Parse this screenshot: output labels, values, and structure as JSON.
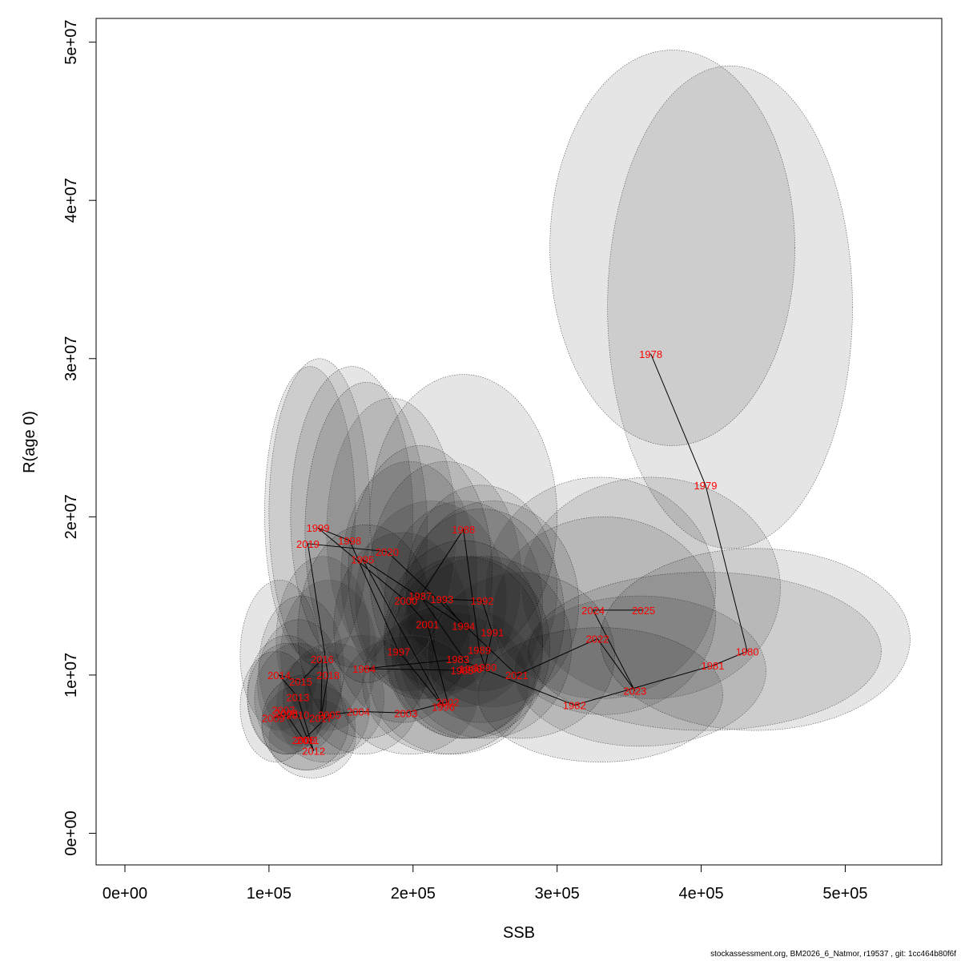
{
  "chart_data": {
    "type": "scatter",
    "title": "",
    "xlabel": "SSB",
    "ylabel": "R(age 0)",
    "xlim": [
      -20000,
      567000
    ],
    "ylim": [
      -2000000,
      51500000
    ],
    "x_ticks": [
      {
        "value": 0,
        "label": "0e+00"
      },
      {
        "value": 100000,
        "label": "1e+05"
      },
      {
        "value": 200000,
        "label": "2e+05"
      },
      {
        "value": 300000,
        "label": "3e+05"
      },
      {
        "value": 400000,
        "label": "4e+05"
      },
      {
        "value": 500000,
        "label": "5e+05"
      }
    ],
    "y_ticks": [
      {
        "value": 0,
        "label": "0e+00"
      },
      {
        "value": 10000000,
        "label": "1e+07"
      },
      {
        "value": 20000000,
        "label": "2e+07"
      },
      {
        "value": 30000000,
        "label": "3e+07"
      },
      {
        "value": 40000000,
        "label": "4e+07"
      },
      {
        "value": 50000000,
        "label": "5e+07"
      }
    ],
    "connect_points": true,
    "label_color": "#ff0000",
    "ellipse_fill": "#000000",
    "ellipse_opacity": 0.1,
    "points": [
      {
        "year": "1978",
        "ssb": 365000,
        "rec": 30300000,
        "ell_x": [
          295000,
          465000
        ],
        "ell_y": [
          24500000,
          49500000
        ]
      },
      {
        "year": "1979",
        "ssb": 403000,
        "rec": 22000000,
        "ell_x": [
          335000,
          505000
        ],
        "ell_y": [
          18000000,
          48500000
        ]
      },
      {
        "year": "1980",
        "ssb": 432000,
        "rec": 11500000,
        "ell_x": [
          330000,
          545000
        ],
        "ell_y": [
          6500000,
          18000000
        ]
      },
      {
        "year": "1981",
        "ssb": 408000,
        "rec": 10600000,
        "ell_x": [
          280000,
          525000
        ],
        "ell_y": [
          6500000,
          16500000
        ]
      },
      {
        "year": "1982",
        "ssb": 312000,
        "rec": 8100000,
        "ell_x": [
          245000,
          415000
        ],
        "ell_y": [
          4500000,
          13000000
        ]
      },
      {
        "year": "1983",
        "ssb": 231000,
        "rec": 11000000,
        "ell_x": [
          180000,
          290000
        ],
        "ell_y": [
          6000000,
          18500000
        ]
      },
      {
        "year": "1984",
        "ssb": 166000,
        "rec": 10400000,
        "ell_x": [
          120000,
          215000
        ],
        "ell_y": [
          6000000,
          19500000
        ]
      },
      {
        "year": "1985",
        "ssb": 234000,
        "rec": 10300000,
        "ell_x": [
          180000,
          290000
        ],
        "ell_y": [
          6000000,
          17500000
        ]
      },
      {
        "year": "1986",
        "ssb": 240000,
        "rec": 10400000,
        "ell_x": [
          185000,
          295000
        ],
        "ell_y": [
          6000000,
          17500000
        ]
      },
      {
        "year": "1987",
        "ssb": 205000,
        "rec": 15000000,
        "ell_x": [
          155000,
          255000
        ],
        "ell_y": [
          8500000,
          24500000
        ]
      },
      {
        "year": "1988",
        "ssb": 235000,
        "rec": 19200000,
        "ell_x": [
          170000,
          300000
        ],
        "ell_y": [
          11000000,
          29000000
        ]
      },
      {
        "year": "1989",
        "ssb": 246000,
        "rec": 11600000,
        "ell_x": [
          190000,
          305000
        ],
        "ell_y": [
          7000000,
          20500000
        ]
      },
      {
        "year": "1990",
        "ssb": 250000,
        "rec": 10500000,
        "ell_x": [
          190000,
          310000
        ],
        "ell_y": [
          6000000,
          17500000
        ]
      },
      {
        "year": "1991",
        "ssb": 255000,
        "rec": 12700000,
        "ell_x": [
          195000,
          315000
        ],
        "ell_y": [
          8000000,
          21000000
        ]
      },
      {
        "year": "1992",
        "ssb": 248000,
        "rec": 14700000,
        "ell_x": [
          195000,
          300000
        ],
        "ell_y": [
          9000000,
          22000000
        ]
      },
      {
        "year": "1993",
        "ssb": 220000,
        "rec": 14800000,
        "ell_x": [
          170000,
          275000
        ],
        "ell_y": [
          9000000,
          23500000
        ]
      },
      {
        "year": "1994",
        "ssb": 235000,
        "rec": 13100000,
        "ell_x": [
          180000,
          290000
        ],
        "ell_y": [
          8000000,
          21000000
        ]
      },
      {
        "year": "1995",
        "ssb": 165000,
        "rec": 17300000,
        "ell_x": [
          125000,
          210000
        ],
        "ell_y": [
          9500000,
          28500000
        ]
      },
      {
        "year": "1996",
        "ssb": 221000,
        "rec": 8000000,
        "ell_x": [
          165000,
          280000
        ],
        "ell_y": [
          5000000,
          14000000
        ]
      },
      {
        "year": "1997",
        "ssb": 190000,
        "rec": 11500000,
        "ell_x": [
          145000,
          240000
        ],
        "ell_y": [
          7000000,
          19000000
        ]
      },
      {
        "year": "1998",
        "ssb": 156000,
        "rec": 18500000,
        "ell_x": [
          115000,
          200000
        ],
        "ell_y": [
          10500000,
          29500000
        ]
      },
      {
        "year": "1999",
        "ssb": 134000,
        "rec": 19300000,
        "ell_x": [
          100000,
          170000
        ],
        "ell_y": [
          10500000,
          30000000
        ]
      },
      {
        "year": "2000",
        "ssb": 195000,
        "rec": 14700000,
        "ell_x": [
          150000,
          245000
        ],
        "ell_y": [
          9000000,
          23500000
        ]
      },
      {
        "year": "2001",
        "ssb": 210000,
        "rec": 13200000,
        "ell_x": [
          160000,
          265000
        ],
        "ell_y": [
          8500000,
          21000000
        ]
      },
      {
        "year": "2002",
        "ssb": 224000,
        "rec": 8300000,
        "ell_x": [
          170000,
          285000
        ],
        "ell_y": [
          5000000,
          14500000
        ]
      },
      {
        "year": "2003",
        "ssb": 195000,
        "rec": 7600000,
        "ell_x": [
          150000,
          245000
        ],
        "ell_y": [
          5000000,
          12500000
        ]
      },
      {
        "year": "2004",
        "ssb": 162000,
        "rec": 7700000,
        "ell_x": [
          125000,
          205000
        ],
        "ell_y": [
          5000000,
          12500000
        ]
      },
      {
        "year": "2005",
        "ssb": 142000,
        "rec": 7500000,
        "ell_x": [
          110000,
          180000
        ],
        "ell_y": [
          5000000,
          12000000
        ]
      },
      {
        "year": "2006",
        "ssb": 124000,
        "rec": 5900000,
        "ell_x": [
          95000,
          155000
        ],
        "ell_y": [
          4000000,
          10000000
        ]
      },
      {
        "year": "2007",
        "ssb": 110000,
        "rec": 7800000,
        "ell_x": [
          85000,
          140000
        ],
        "ell_y": [
          5000000,
          12500000
        ]
      },
      {
        "year": "2008",
        "ssb": 112000,
        "rec": 7600000,
        "ell_x": [
          85000,
          140000
        ],
        "ell_y": [
          5000000,
          12000000
        ]
      },
      {
        "year": "2009",
        "ssb": 103000,
        "rec": 7300000,
        "ell_x": [
          80000,
          130000
        ],
        "ell_y": [
          4500000,
          11500000
        ]
      },
      {
        "year": "2010",
        "ssb": 120000,
        "rec": 7500000,
        "ell_x": [
          90000,
          150000
        ],
        "ell_y": [
          5000000,
          12000000
        ]
      },
      {
        "year": "2011",
        "ssb": 127000,
        "rec": 5900000,
        "ell_x": [
          95000,
          160000
        ],
        "ell_y": [
          4000000,
          9500000
        ]
      },
      {
        "year": "2012",
        "ssb": 131000,
        "rec": 5200000,
        "ell_x": [
          100000,
          160000
        ],
        "ell_y": [
          3500000,
          8500000
        ]
      },
      {
        "year": "2013",
        "ssb": 120000,
        "rec": 8600000,
        "ell_x": [
          92000,
          150000
        ],
        "ell_y": [
          5500000,
          13500000
        ]
      },
      {
        "year": "2014",
        "ssb": 107000,
        "rec": 10000000,
        "ell_x": [
          80000,
          135000
        ],
        "ell_y": [
          6500000,
          16000000
        ]
      },
      {
        "year": "2015",
        "ssb": 122000,
        "rec": 9600000,
        "ell_x": [
          93000,
          152000
        ],
        "ell_y": [
          6000000,
          15000000
        ]
      },
      {
        "year": "2016",
        "ssb": 137000,
        "rec": 11000000,
        "ell_x": [
          105000,
          170000
        ],
        "ell_y": [
          7000000,
          17500000
        ]
      },
      {
        "year": "2017",
        "ssb": 136000,
        "rec": 7300000,
        "ell_x": [
          105000,
          170000
        ],
        "ell_y": [
          4500000,
          11500000
        ]
      },
      {
        "year": "2018",
        "ssb": 141000,
        "rec": 10000000,
        "ell_x": [
          108000,
          175000
        ],
        "ell_y": [
          6500000,
          16000000
        ]
      },
      {
        "year": "2019",
        "ssb": 127000,
        "rec": 18300000,
        "ell_x": [
          97000,
          160000
        ],
        "ell_y": [
          11000000,
          29500000
        ]
      },
      {
        "year": "2020",
        "ssb": 182000,
        "rec": 17800000,
        "ell_x": [
          140000,
          230000
        ],
        "ell_y": [
          10500000,
          27500000
        ]
      },
      {
        "year": "2021",
        "ssb": 272000,
        "rec": 10000000,
        "ell_x": [
          210000,
          340000
        ],
        "ell_y": [
          6000000,
          16500000
        ]
      },
      {
        "year": "2022",
        "ssb": 328000,
        "rec": 12300000,
        "ell_x": [
          255000,
          410000
        ],
        "ell_y": [
          7500000,
          20000000
        ]
      },
      {
        "year": "2023",
        "ssb": 354000,
        "rec": 9000000,
        "ell_x": [
          270000,
          445000
        ],
        "ell_y": [
          5500000,
          15000000
        ]
      },
      {
        "year": "2024",
        "ssb": 325000,
        "rec": 14100000,
        "ell_x": [
          250000,
          410000
        ],
        "ell_y": [
          8500000,
          22500000
        ]
      },
      {
        "year": "2025",
        "ssb": 360000,
        "rec": 14100000,
        "ell_x": [
          275000,
          455000
        ],
        "ell_y": [
          8500000,
          22500000
        ]
      }
    ]
  },
  "footer": "stockassessment.org, BM2026_6_Natmor, r19537 , git: 1cc464b80f6f"
}
